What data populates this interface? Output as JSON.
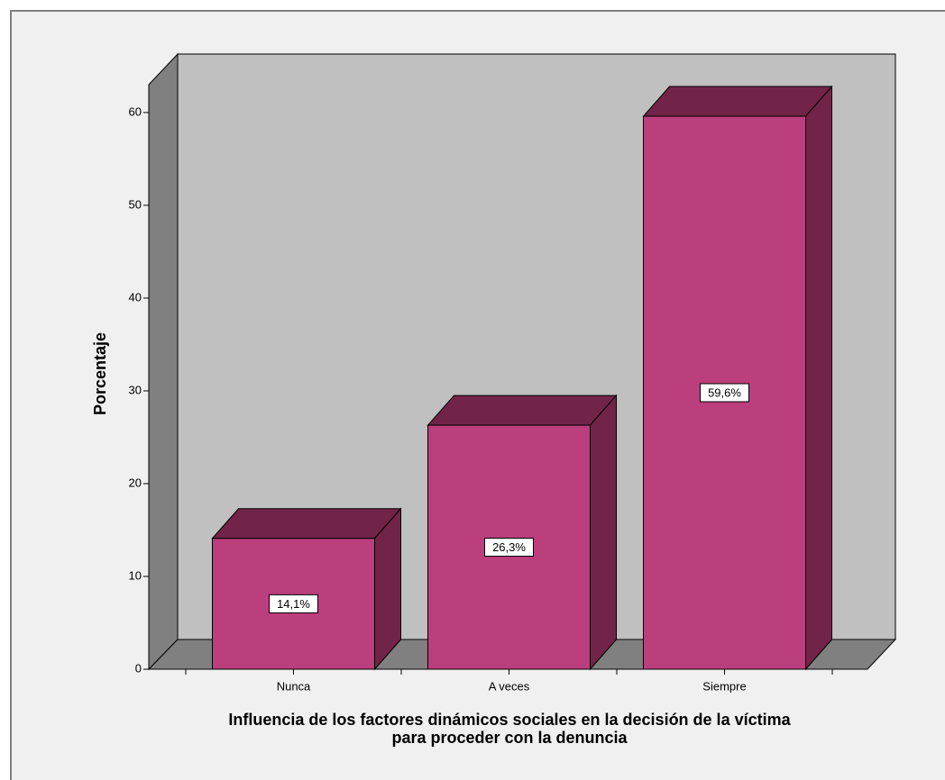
{
  "chart_data": {
    "type": "bar3d",
    "ylabel": "Porcentaje",
    "xlabel_lines": [
      "Influencia de los factores dinámicos sociales en la decisión de la víctima",
      "para proceder con la denuncia"
    ],
    "categories": [
      "Nunca",
      "A veces",
      "Siempre"
    ],
    "values": [
      14.1,
      26.3,
      59.6
    ],
    "value_labels": [
      "14,1%",
      "26,3%",
      "59,6%"
    ],
    "color": "#bb3f7c",
    "side_color": "#722448",
    "ylim": [
      0,
      63
    ],
    "yticks": [
      0,
      10,
      20,
      30,
      40,
      50,
      60
    ]
  }
}
